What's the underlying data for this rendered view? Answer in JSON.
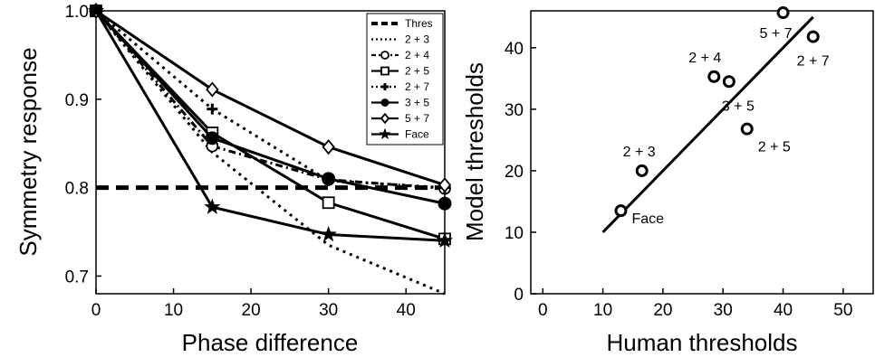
{
  "chart_data": [
    {
      "type": "line",
      "xlabel": "Phase difference",
      "ylabel": "Symmetry response",
      "xlim": [
        0,
        45
      ],
      "ylim": [
        0.68,
        1.0
      ],
      "xticks": [
        0,
        10,
        20,
        30,
        40
      ],
      "yticks": [
        0.7,
        0.8,
        0.9,
        1.0
      ],
      "ytick_labels": [
        "0.7",
        "0.8",
        "0.9",
        "1.0"
      ],
      "legend_position": "top-right",
      "x": [
        0,
        15,
        30,
        45
      ],
      "series": [
        {
          "name": "Thres",
          "values": [
            0.8,
            0.8,
            0.8,
            0.8
          ],
          "style": "thick-dashed",
          "marker": "none"
        },
        {
          "name": "2 + 3",
          "values": [
            1.0,
            0.84,
            0.735,
            0.68
          ],
          "style": "dotted",
          "marker": "none"
        },
        {
          "name": "2 + 4",
          "values": [
            1.0,
            0.847,
            0.809,
            0.799
          ],
          "style": "dash-dot",
          "marker": "circle-open"
        },
        {
          "name": "2 + 5",
          "values": [
            1.0,
            0.862,
            0.783,
            0.742
          ],
          "style": "solid",
          "marker": "square-open"
        },
        {
          "name": "2 + 7",
          "values": [
            1.0,
            0.889,
            0.808,
            0.8
          ],
          "style": "dotted",
          "marker": "plus"
        },
        {
          "name": "3 + 5",
          "values": [
            1.0,
            0.856,
            0.81,
            0.782
          ],
          "style": "solid",
          "marker": "circle-filled"
        },
        {
          "name": "5 + 7",
          "values": [
            1.0,
            0.911,
            0.846,
            0.803
          ],
          "style": "solid",
          "marker": "diamond-open"
        },
        {
          "name": "Face",
          "values": [
            1.0,
            0.778,
            0.747,
            0.74
          ],
          "style": "solid",
          "marker": "star"
        }
      ]
    },
    {
      "type": "scatter",
      "xlabel": "Human thresholds",
      "ylabel": "Model thresholds",
      "xlim": [
        -2,
        55
      ],
      "ylim": [
        0,
        46
      ],
      "xticks": [
        0,
        10,
        20,
        30,
        40,
        50
      ],
      "yticks": [
        0,
        10,
        20,
        30,
        40
      ],
      "points": [
        {
          "label": "Face",
          "x": 13,
          "y": 13.5
        },
        {
          "label": "2 + 3",
          "x": 16.5,
          "y": 20
        },
        {
          "label": "2 + 4",
          "x": 28.5,
          "y": 35.3
        },
        {
          "label": "3 + 5",
          "x": 31,
          "y": 34.5
        },
        {
          "label": "2 + 5",
          "x": 34,
          "y": 26.8
        },
        {
          "label": "5 + 7",
          "x": 40,
          "y": 45.7
        },
        {
          "label": "2 + 7",
          "x": 45,
          "y": 41.8
        }
      ],
      "fit_line": {
        "x": [
          10,
          45
        ],
        "y": [
          10,
          45
        ]
      }
    }
  ]
}
